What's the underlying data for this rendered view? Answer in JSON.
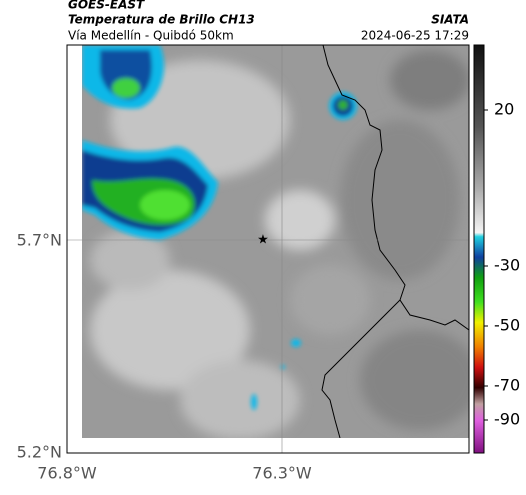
{
  "header": {
    "source": "GOES-EAST",
    "title": "Temperatura de Brillo CH13",
    "agency": "SIATA",
    "subtitle": "Vía Medellín - Quibdó 50km",
    "timestamp": "2024-06-25 17:29"
  },
  "latitude_ticks": [
    "5.7°N",
    "5.2°N"
  ],
  "longitude_ticks": [
    "76.8°W",
    "76.3°W"
  ],
  "colorbar_ticks": [
    "20",
    "-30",
    "-50",
    "-70",
    "-90"
  ]
}
